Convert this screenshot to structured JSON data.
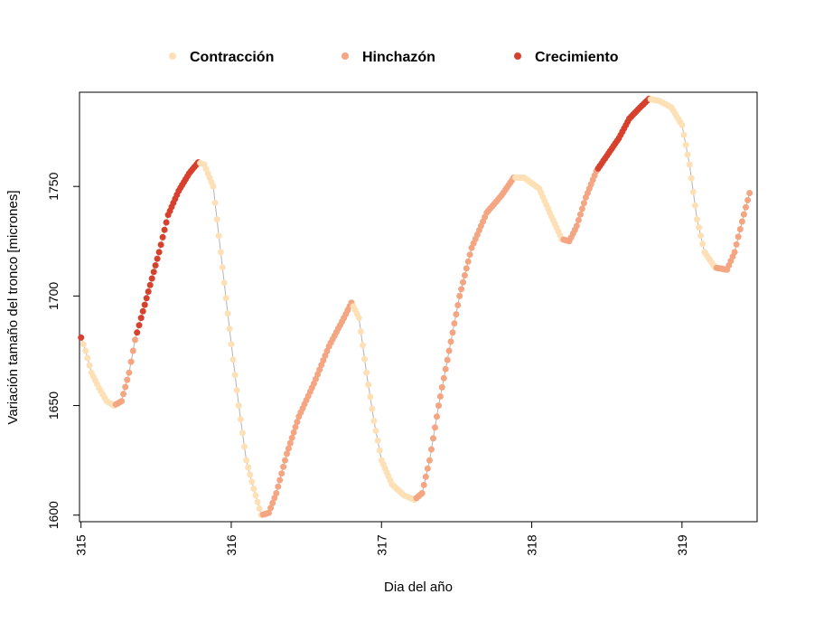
{
  "chart_data": {
    "type": "scatter",
    "title": "",
    "xlabel": "Dia del año",
    "ylabel": "Variación tamaño del tronco [micrones]",
    "xlim": [
      314.99,
      319.5
    ],
    "ylim": [
      1597,
      1793
    ],
    "xticks": [
      315,
      316,
      317,
      318,
      319
    ],
    "yticks": [
      1600,
      1650,
      1700,
      1750
    ],
    "grid": false,
    "legend_position": "top",
    "line_color": "#b3b3b3",
    "series": [
      {
        "name": "Contracción",
        "color": "#fee0b6"
      },
      {
        "name": "Hinchazón",
        "color": "#f4a582"
      },
      {
        "name": "Crecimiento",
        "color": "#d6402c"
      }
    ],
    "trajectory": [
      {
        "x": 315.0,
        "y": 1681,
        "phase": "Crecimiento"
      },
      {
        "x": 315.03,
        "y": 1675,
        "phase": "Contracción"
      },
      {
        "x": 315.07,
        "y": 1665,
        "phase": "Contracción"
      },
      {
        "x": 315.12,
        "y": 1658,
        "phase": "Contracción"
      },
      {
        "x": 315.17,
        "y": 1652,
        "phase": "Contracción"
      },
      {
        "x": 315.22,
        "y": 1650,
        "phase": "Contracción"
      },
      {
        "x": 315.27,
        "y": 1652,
        "phase": "Hinchazón"
      },
      {
        "x": 315.32,
        "y": 1665,
        "phase": "Hinchazón"
      },
      {
        "x": 315.36,
        "y": 1680,
        "phase": "Hinchazón"
      },
      {
        "x": 315.4,
        "y": 1690,
        "phase": "Crecimiento"
      },
      {
        "x": 315.46,
        "y": 1705,
        "phase": "Crecimiento"
      },
      {
        "x": 315.52,
        "y": 1720,
        "phase": "Crecimiento"
      },
      {
        "x": 315.58,
        "y": 1737,
        "phase": "Crecimiento"
      },
      {
        "x": 315.65,
        "y": 1748,
        "phase": "Crecimiento"
      },
      {
        "x": 315.72,
        "y": 1756,
        "phase": "Crecimiento"
      },
      {
        "x": 315.78,
        "y": 1761,
        "phase": "Crecimiento"
      },
      {
        "x": 315.82,
        "y": 1760,
        "phase": "Contracción"
      },
      {
        "x": 315.88,
        "y": 1750,
        "phase": "Contracción"
      },
      {
        "x": 315.93,
        "y": 1720,
        "phase": "Contracción"
      },
      {
        "x": 316.0,
        "y": 1678,
        "phase": "Contracción"
      },
      {
        "x": 316.05,
        "y": 1650,
        "phase": "Contracción"
      },
      {
        "x": 316.1,
        "y": 1625,
        "phase": "Contracción"
      },
      {
        "x": 316.15,
        "y": 1612,
        "phase": "Contracción"
      },
      {
        "x": 316.2,
        "y": 1600,
        "phase": "Contracción"
      },
      {
        "x": 316.25,
        "y": 1601,
        "phase": "Hinchazón"
      },
      {
        "x": 316.3,
        "y": 1610,
        "phase": "Hinchazón"
      },
      {
        "x": 316.37,
        "y": 1628,
        "phase": "Hinchazón"
      },
      {
        "x": 316.45,
        "y": 1645,
        "phase": "Hinchazón"
      },
      {
        "x": 316.55,
        "y": 1660,
        "phase": "Hinchazón"
      },
      {
        "x": 316.65,
        "y": 1677,
        "phase": "Hinchazón"
      },
      {
        "x": 316.75,
        "y": 1690,
        "phase": "Hinchazón"
      },
      {
        "x": 316.8,
        "y": 1697,
        "phase": "Hinchazón"
      },
      {
        "x": 316.85,
        "y": 1690,
        "phase": "Contracción"
      },
      {
        "x": 316.9,
        "y": 1665,
        "phase": "Contracción"
      },
      {
        "x": 316.95,
        "y": 1643,
        "phase": "Contracción"
      },
      {
        "x": 317.0,
        "y": 1625,
        "phase": "Contracción"
      },
      {
        "x": 317.07,
        "y": 1614,
        "phase": "Contracción"
      },
      {
        "x": 317.15,
        "y": 1609,
        "phase": "Contracción"
      },
      {
        "x": 317.22,
        "y": 1607,
        "phase": "Contracción"
      },
      {
        "x": 317.27,
        "y": 1610,
        "phase": "Hinchazón"
      },
      {
        "x": 317.32,
        "y": 1625,
        "phase": "Hinchazón"
      },
      {
        "x": 317.38,
        "y": 1650,
        "phase": "Hinchazón"
      },
      {
        "x": 317.45,
        "y": 1675,
        "phase": "Hinchazón"
      },
      {
        "x": 317.52,
        "y": 1700,
        "phase": "Hinchazón"
      },
      {
        "x": 317.6,
        "y": 1722,
        "phase": "Hinchazón"
      },
      {
        "x": 317.7,
        "y": 1738,
        "phase": "Hinchazón"
      },
      {
        "x": 317.8,
        "y": 1746,
        "phase": "Hinchazón"
      },
      {
        "x": 317.88,
        "y": 1754,
        "phase": "Hinchazón"
      },
      {
        "x": 317.95,
        "y": 1754,
        "phase": "Contracción"
      },
      {
        "x": 318.05,
        "y": 1749,
        "phase": "Contracción"
      },
      {
        "x": 318.12,
        "y": 1738,
        "phase": "Contracción"
      },
      {
        "x": 318.2,
        "y": 1726,
        "phase": "Contracción"
      },
      {
        "x": 318.25,
        "y": 1725,
        "phase": "Hinchazón"
      },
      {
        "x": 318.3,
        "y": 1732,
        "phase": "Hinchazón"
      },
      {
        "x": 318.36,
        "y": 1745,
        "phase": "Hinchazón"
      },
      {
        "x": 318.43,
        "y": 1757,
        "phase": "Hinchazón"
      },
      {
        "x": 318.5,
        "y": 1764,
        "phase": "Crecimiento"
      },
      {
        "x": 318.58,
        "y": 1772,
        "phase": "Crecimiento"
      },
      {
        "x": 318.65,
        "y": 1781,
        "phase": "Crecimiento"
      },
      {
        "x": 318.72,
        "y": 1786,
        "phase": "Crecimiento"
      },
      {
        "x": 318.78,
        "y": 1790,
        "phase": "Crecimiento"
      },
      {
        "x": 318.85,
        "y": 1789,
        "phase": "Contracción"
      },
      {
        "x": 318.93,
        "y": 1786,
        "phase": "Contracción"
      },
      {
        "x": 319.0,
        "y": 1778,
        "phase": "Contracción"
      },
      {
        "x": 319.05,
        "y": 1760,
        "phase": "Contracción"
      },
      {
        "x": 319.1,
        "y": 1735,
        "phase": "Contracción"
      },
      {
        "x": 319.15,
        "y": 1720,
        "phase": "Contracción"
      },
      {
        "x": 319.22,
        "y": 1713,
        "phase": "Contracción"
      },
      {
        "x": 319.3,
        "y": 1712,
        "phase": "Hinchazón"
      },
      {
        "x": 319.35,
        "y": 1720,
        "phase": "Hinchazón"
      },
      {
        "x": 319.4,
        "y": 1734,
        "phase": "Hinchazón"
      },
      {
        "x": 319.45,
        "y": 1747,
        "phase": "Hinchazón"
      }
    ]
  }
}
